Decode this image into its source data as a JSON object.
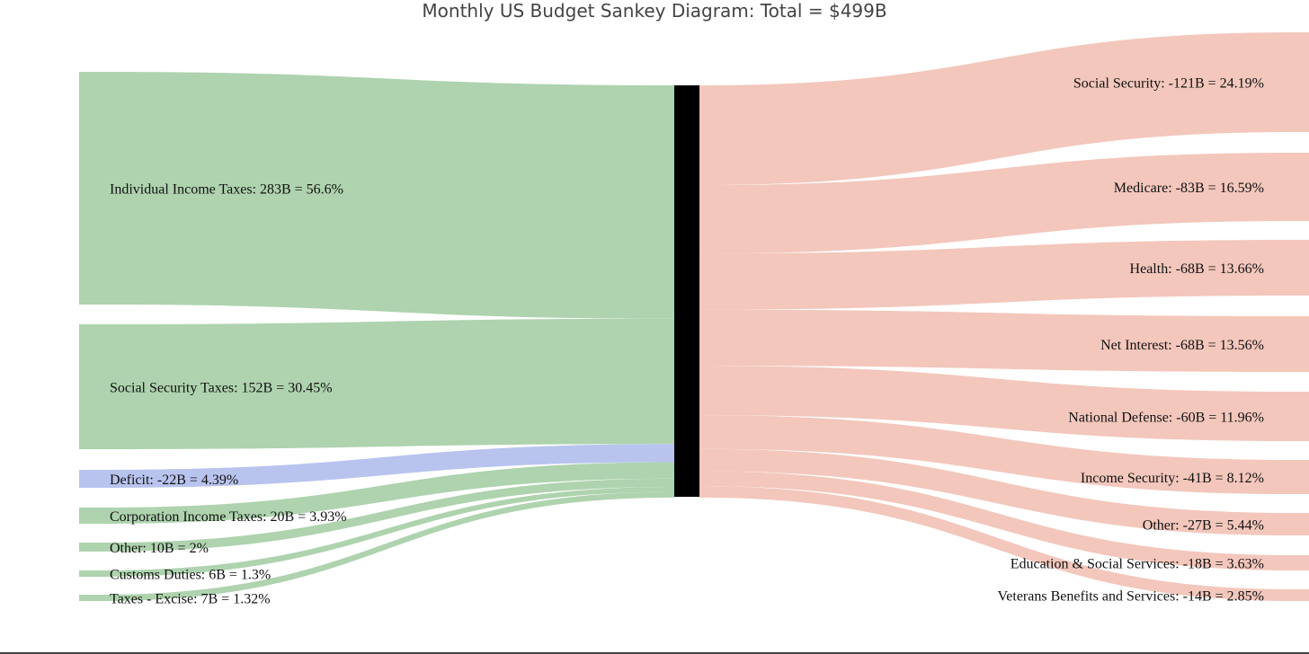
{
  "title": "Monthly US Budget Sankey Diagram: Total = $499B",
  "colors": {
    "income": "#aed3ae",
    "deficit": "#b8c4ee",
    "spending": "#f3c7bc",
    "hub": "#000000"
  },
  "chart_data": {
    "type": "sankey",
    "total": 499,
    "hub": "",
    "sources": [
      {
        "id": "individual",
        "label": "Individual Income Taxes: 283B = 56.6%",
        "value": 283,
        "kind": "income"
      },
      {
        "id": "socsec-tax",
        "label": "Social Security Taxes: 152B = 30.45%",
        "value": 152,
        "kind": "income"
      },
      {
        "id": "deficit",
        "label": "Deficit: -22B = 4.39%",
        "value": 22,
        "kind": "deficit"
      },
      {
        "id": "corp",
        "label": "Corporation Income Taxes: 20B = 3.93%",
        "value": 20,
        "kind": "income"
      },
      {
        "id": "other-in",
        "label": "Other: 10B = 2%",
        "value": 10,
        "kind": "income"
      },
      {
        "id": "customs",
        "label": "Customs Duties: 6B = 1.3%",
        "value": 6,
        "kind": "income"
      },
      {
        "id": "excise",
        "label": "Taxes - Excise: 7B = 1.32%",
        "value": 7,
        "kind": "income"
      }
    ],
    "targets": [
      {
        "id": "socsec",
        "label": "Social Security: -121B = 24.19%",
        "value": 121
      },
      {
        "id": "medicare",
        "label": "Medicare: -83B = 16.59%",
        "value": 83
      },
      {
        "id": "health",
        "label": "Health: -68B = 13.66%",
        "value": 68
      },
      {
        "id": "interest",
        "label": "Net Interest: -68B = 13.56%",
        "value": 68
      },
      {
        "id": "defense",
        "label": "National Defense: -60B = 11.96%",
        "value": 60
      },
      {
        "id": "income-sec",
        "label": "Income Security: -41B = 8.12%",
        "value": 41
      },
      {
        "id": "other-out",
        "label": "Other: -27B = 5.44%",
        "value": 27
      },
      {
        "id": "education",
        "label": "Education & Social Services: -18B = 3.63%",
        "value": 18
      },
      {
        "id": "veterans",
        "label": "Veterans Benefits and Services: -14B = 2.85%",
        "value": 14
      }
    ]
  }
}
